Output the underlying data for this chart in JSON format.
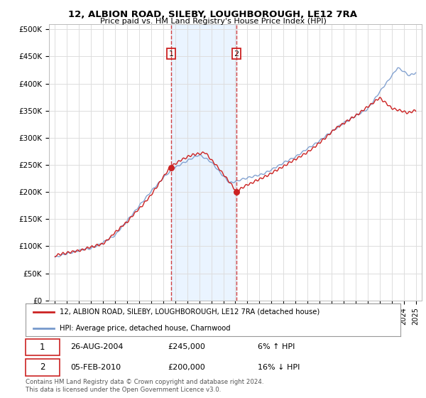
{
  "title1": "12, ALBION ROAD, SILEBY, LOUGHBOROUGH, LE12 7RA",
  "title2": "Price paid vs. HM Land Registry's House Price Index (HPI)",
  "ylabel_ticks": [
    "£0",
    "£50K",
    "£100K",
    "£150K",
    "£200K",
    "£250K",
    "£300K",
    "£350K",
    "£400K",
    "£450K",
    "£500K"
  ],
  "ytick_values": [
    0,
    50000,
    100000,
    150000,
    200000,
    250000,
    300000,
    350000,
    400000,
    450000,
    500000
  ],
  "xlim_start": 1994.5,
  "xlim_end": 2025.5,
  "ylim": [
    0,
    510000
  ],
  "hpi_color": "#7799cc",
  "price_color": "#cc2222",
  "sale1_date": 2004.65,
  "sale1_price": 245000,
  "sale2_date": 2010.09,
  "sale2_price": 200000,
  "legend_line1": "12, ALBION ROAD, SILEBY, LOUGHBOROUGH, LE12 7RA (detached house)",
  "legend_line2": "HPI: Average price, detached house, Charnwood",
  "table_row1": [
    "1",
    "26-AUG-2004",
    "£245,000",
    "6% ↑ HPI"
  ],
  "table_row2": [
    "2",
    "05-FEB-2010",
    "£200,000",
    "16% ↓ HPI"
  ],
  "footer": "Contains HM Land Registry data © Crown copyright and database right 2024.\nThis data is licensed under the Open Government Licence v3.0.",
  "background_color": "#ffffff",
  "grid_color": "#dddddd",
  "shade_color": "#ddeeff"
}
